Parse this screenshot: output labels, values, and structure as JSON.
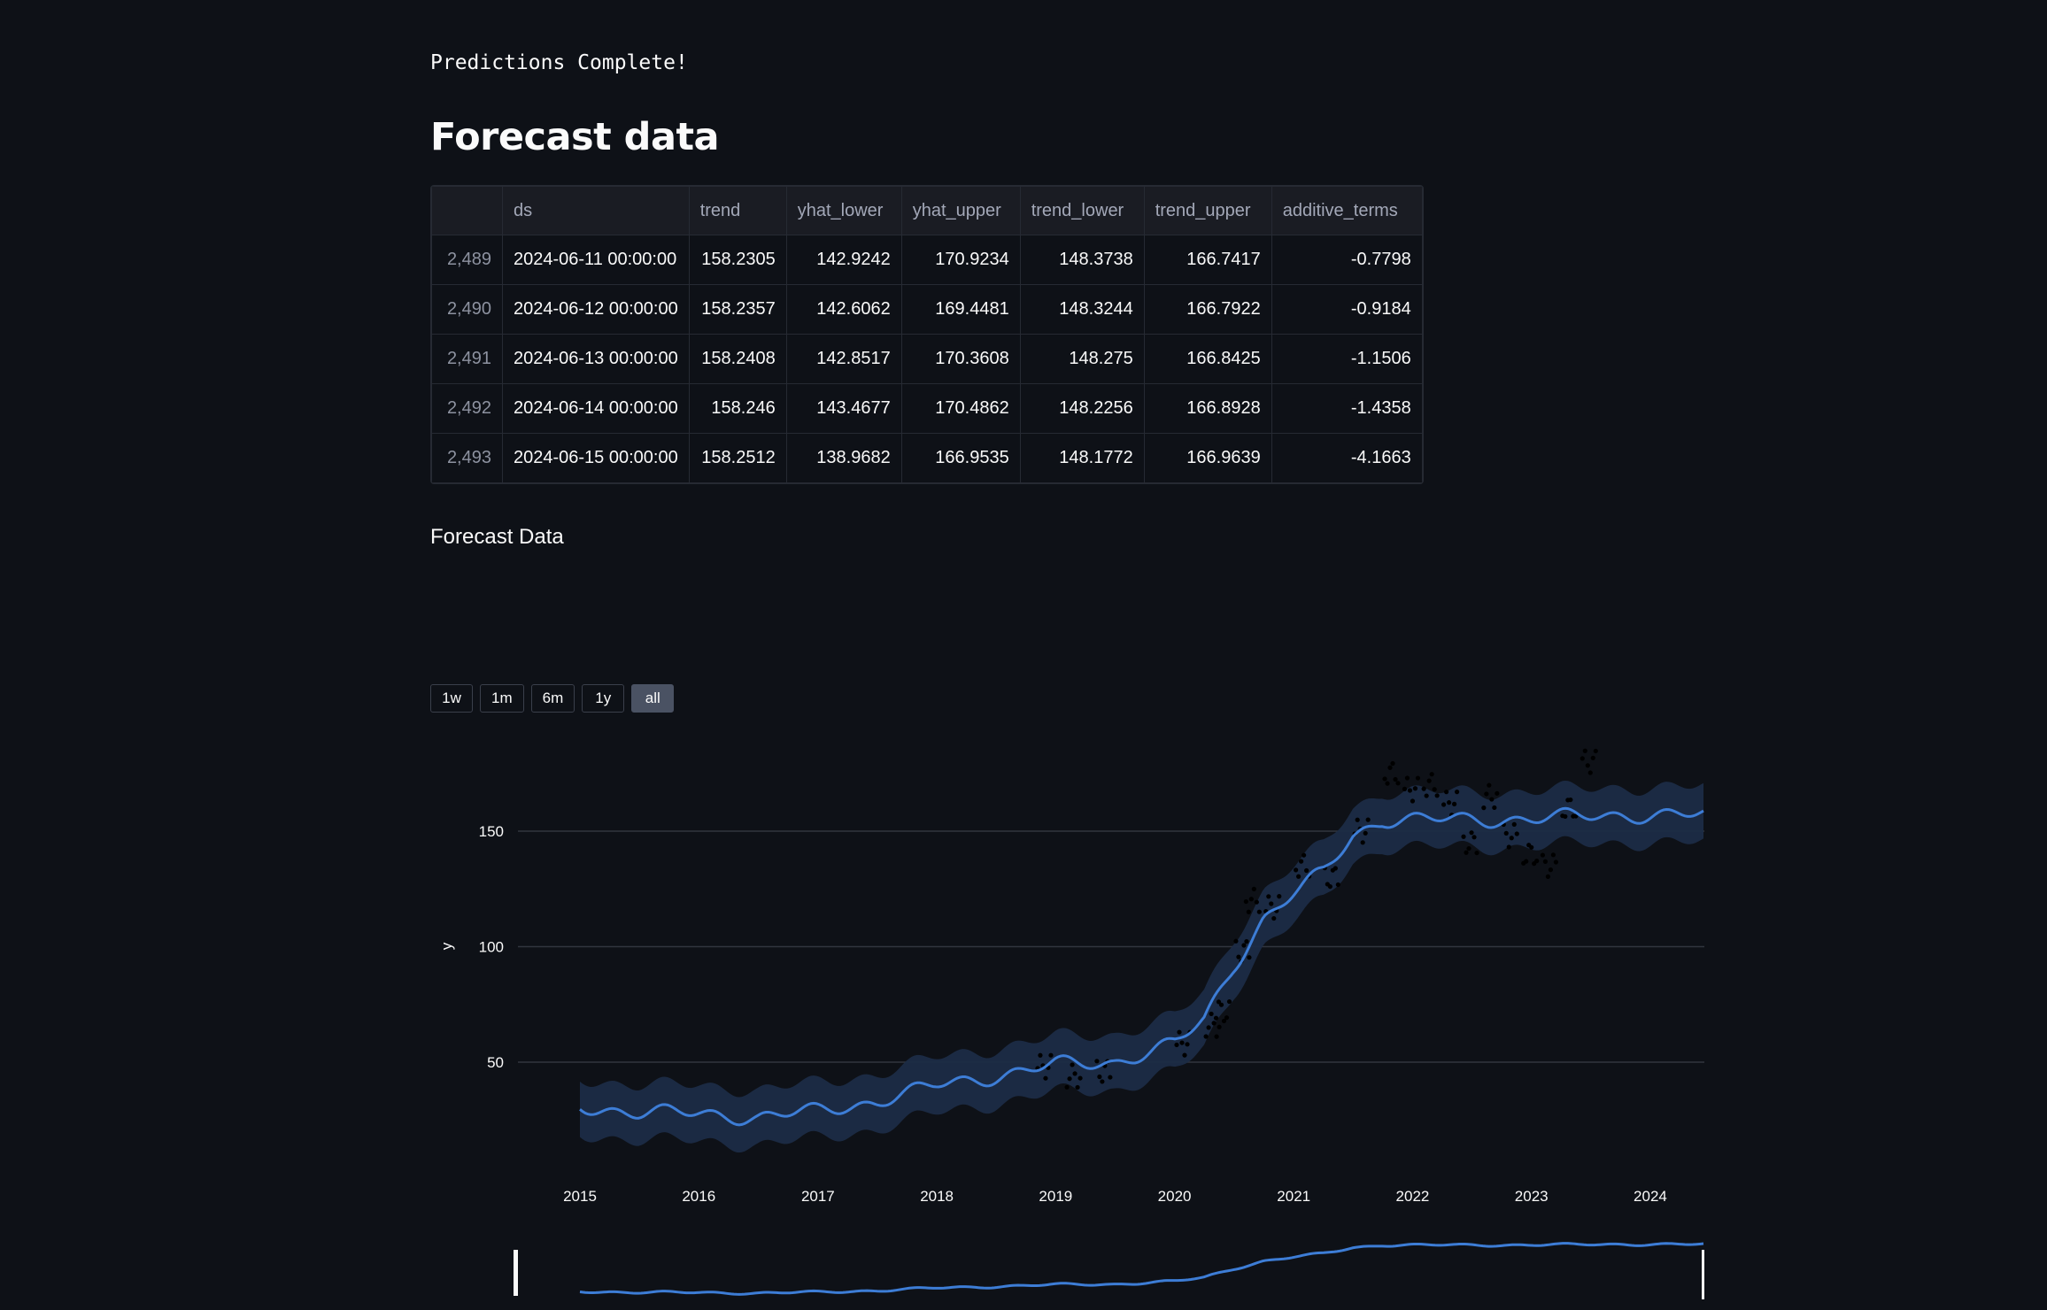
{
  "status_text": "Predictions Complete!",
  "heading": "Forecast data",
  "table": {
    "columns": [
      "",
      "ds",
      "trend",
      "yhat_lower",
      "yhat_upper",
      "trend_lower",
      "trend_upper",
      "additive_terms"
    ],
    "rows": [
      [
        "2,489",
        "2024-06-11 00:00:00",
        "158.2305",
        "142.9242",
        "170.9234",
        "148.3738",
        "166.7417",
        "-0.7798"
      ],
      [
        "2,490",
        "2024-06-12 00:00:00",
        "158.2357",
        "142.6062",
        "169.4481",
        "148.3244",
        "166.7922",
        "-0.9184"
      ],
      [
        "2,491",
        "2024-06-13 00:00:00",
        "158.2408",
        "142.8517",
        "170.3608",
        "148.275",
        "166.8425",
        "-1.1506"
      ],
      [
        "2,492",
        "2024-06-14 00:00:00",
        "158.246",
        "143.4677",
        "170.4862",
        "148.2256",
        "166.8928",
        "-1.4358"
      ],
      [
        "2,493",
        "2024-06-15 00:00:00",
        "158.2512",
        "138.9682",
        "166.9535",
        "148.1772",
        "166.9639",
        "-4.1663"
      ]
    ]
  },
  "chart_title": "Forecast Data",
  "range_buttons": [
    {
      "label": "1w",
      "active": false
    },
    {
      "label": "1m",
      "active": false
    },
    {
      "label": "6m",
      "active": false
    },
    {
      "label": "1y",
      "active": false
    },
    {
      "label": "all",
      "active": true
    }
  ],
  "chart_data": {
    "type": "line",
    "title": "",
    "xlabel": "",
    "ylabel": "y",
    "x_ticks": [
      "2015",
      "2016",
      "2017",
      "2018",
      "2019",
      "2020",
      "2021",
      "2022",
      "2023",
      "2024"
    ],
    "y_ticks": [
      50,
      100,
      150
    ],
    "xlim": [
      "2015-01-01",
      "2024-06-15"
    ],
    "ylim": [
      0,
      185
    ],
    "grid": true,
    "range_slider": true,
    "series": [
      {
        "role": "forecast_yhat",
        "color": "#3d7dd6",
        "band_color": "#1c2c46",
        "points": [
          [
            "2015-01-01",
            31
          ],
          [
            "2015-07-01",
            28
          ],
          [
            "2016-01-01",
            28
          ],
          [
            "2016-07-01",
            26
          ],
          [
            "2017-01-01",
            29
          ],
          [
            "2017-07-01",
            33
          ],
          [
            "2018-01-01",
            40
          ],
          [
            "2018-07-01",
            44
          ],
          [
            "2019-01-01",
            49
          ],
          [
            "2019-07-01",
            50
          ],
          [
            "2020-01-01",
            58
          ],
          [
            "2020-04-01",
            68
          ],
          [
            "2020-07-01",
            92
          ],
          [
            "2020-10-01",
            112
          ],
          [
            "2021-01-01",
            123
          ],
          [
            "2021-04-01",
            132
          ],
          [
            "2021-07-01",
            148
          ],
          [
            "2021-10-01",
            155
          ],
          [
            "2022-04-01",
            155
          ],
          [
            "2022-10-01",
            155
          ],
          [
            "2023-04-01",
            156
          ],
          [
            "2023-10-01",
            157
          ],
          [
            "2024-06-15",
            157
          ]
        ]
      },
      {
        "role": "actuals",
        "color": "#000000",
        "points": [
          [
            "2018-12-01",
            48
          ],
          [
            "2019-03-01",
            44
          ],
          [
            "2019-06-01",
            46
          ],
          [
            "2020-02-01",
            58
          ],
          [
            "2020-05-01",
            66
          ],
          [
            "2020-06-01",
            72
          ],
          [
            "2020-08-01",
            98
          ],
          [
            "2020-09-01",
            120
          ],
          [
            "2020-11-01",
            117
          ],
          [
            "2021-02-01",
            135
          ],
          [
            "2021-05-01",
            130
          ],
          [
            "2021-08-01",
            150
          ],
          [
            "2021-11-01",
            175
          ],
          [
            "2022-01-01",
            168
          ],
          [
            "2022-03-01",
            170
          ],
          [
            "2022-05-01",
            162
          ],
          [
            "2022-07-01",
            145
          ],
          [
            "2022-09-01",
            165
          ],
          [
            "2022-11-01",
            148
          ],
          [
            "2023-01-01",
            140
          ],
          [
            "2023-03-01",
            135
          ],
          [
            "2023-05-01",
            160
          ],
          [
            "2023-07-01",
            180
          ]
        ]
      }
    ]
  }
}
